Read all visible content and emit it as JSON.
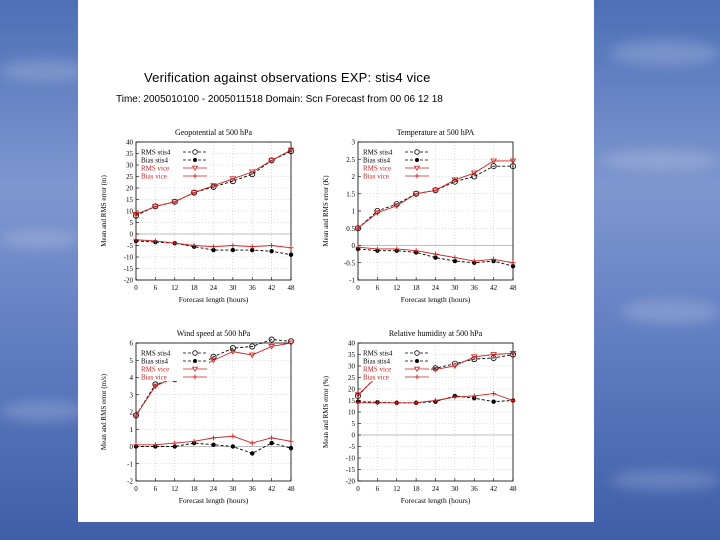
{
  "slide": {
    "title": "Verification against observations EXP:   stis4 vice",
    "subtitle": "Time: 2005010100 - 2005011518   Domain: Scn   Forecast from 00 06 12 18"
  },
  "chart_data": [
    {
      "type": "line",
      "title": "Geopotential at 500 hPa",
      "xlabel": "Forecast length (hours)",
      "ylabel": "Mean and RMS error (m)",
      "x": [
        0,
        6,
        12,
        18,
        24,
        30,
        36,
        42,
        48
      ],
      "xticks": [
        "0",
        "6",
        "12",
        "18",
        "24",
        "30",
        "36",
        "42",
        "48"
      ],
      "ylim": [
        -20,
        40
      ],
      "yticks": [
        -20,
        -15,
        -10,
        -5,
        0,
        5,
        10,
        15,
        20,
        25,
        30,
        35,
        40
      ],
      "grid": true,
      "legend": "top-left",
      "series": [
        {
          "name": "RMS stis4",
          "color": "#000000",
          "marker": "circle",
          "dashed": true,
          "values": [
            8,
            12,
            14,
            18,
            20.5,
            23,
            26,
            32,
            36
          ]
        },
        {
          "name": "Bias stis4",
          "color": "#000000",
          "marker": "dot",
          "dashed": true,
          "values": [
            -3,
            -3.5,
            -4,
            -5.5,
            -7,
            -7,
            -7,
            -7.5,
            -9
          ]
        },
        {
          "name": "RMS vice",
          "color": "#cc2222",
          "marker": "triangle",
          "dashed": false,
          "values": [
            8.5,
            12,
            14,
            18,
            21,
            24,
            27,
            32,
            36.5
          ]
        },
        {
          "name": "Bias vice",
          "color": "#cc2222",
          "marker": "plus",
          "dashed": false,
          "values": [
            -2.5,
            -3,
            -4,
            -5,
            -5.5,
            -5,
            -5.5,
            -5,
            -6
          ]
        }
      ]
    },
    {
      "type": "line",
      "title": "Temperature at 500 hPA",
      "xlabel": "Forecast length (hours)",
      "ylabel": "Mean and RMS error (K)",
      "x": [
        0,
        6,
        12,
        18,
        24,
        30,
        36,
        42,
        48
      ],
      "xticks": [
        "0",
        "6",
        "12",
        "18",
        "24",
        "30",
        "36",
        "42",
        "48"
      ],
      "ylim": [
        -1,
        3
      ],
      "yticks": [
        -1,
        -0.5,
        0,
        0.5,
        1,
        1.5,
        2,
        2.5,
        3
      ],
      "grid": true,
      "legend": "top-left",
      "series": [
        {
          "name": "RMS stis4",
          "color": "#000000",
          "marker": "circle",
          "dashed": true,
          "values": [
            0.5,
            1.0,
            1.2,
            1.5,
            1.6,
            1.85,
            2.0,
            2.3,
            2.3
          ]
        },
        {
          "name": "Bias stis4",
          "color": "#000000",
          "marker": "dot",
          "dashed": true,
          "values": [
            -0.1,
            -0.15,
            -0.15,
            -0.2,
            -0.35,
            -0.45,
            -0.5,
            -0.45,
            -0.6
          ]
        },
        {
          "name": "RMS vice",
          "color": "#cc2222",
          "marker": "triangle",
          "dashed": false,
          "values": [
            0.5,
            0.95,
            1.15,
            1.5,
            1.6,
            1.9,
            2.1,
            2.45,
            2.45
          ]
        },
        {
          "name": "Bias vice",
          "color": "#cc2222",
          "marker": "plus",
          "dashed": false,
          "values": [
            -0.05,
            -0.1,
            -0.1,
            -0.15,
            -0.25,
            -0.35,
            -0.45,
            -0.4,
            -0.5
          ]
        }
      ]
    },
    {
      "type": "line",
      "title": "Wind speed at 500 hPa",
      "xlabel": "Forecast length (hours)",
      "ylabel": "Mean and RMS error (m/s)",
      "x": [
        0,
        6,
        12,
        18,
        24,
        30,
        36,
        42,
        48
      ],
      "xticks": [
        "0",
        "6",
        "12",
        "18",
        "24",
        "30",
        "36",
        "42",
        "48"
      ],
      "ylim": [
        -2,
        6
      ],
      "yticks": [
        -2,
        -1,
        0,
        1,
        2,
        3,
        4,
        5,
        6
      ],
      "grid": true,
      "legend": "top-left",
      "series": [
        {
          "name": "RMS stis4",
          "color": "#000000",
          "marker": "circle",
          "dashed": true,
          "values": [
            1.8,
            3.6,
            3.9,
            4.5,
            5.2,
            5.7,
            5.8,
            6.2,
            6.1
          ]
        },
        {
          "name": "Bias stis4",
          "color": "#000000",
          "marker": "dot",
          "dashed": true,
          "values": [
            0.0,
            0.0,
            0.0,
            0.2,
            0.1,
            0.0,
            -0.4,
            0.2,
            -0.1
          ]
        },
        {
          "name": "RMS vice",
          "color": "#cc2222",
          "marker": "triangle",
          "dashed": false,
          "values": [
            1.8,
            3.5,
            4.0,
            4.4,
            5.0,
            5.5,
            5.3,
            5.8,
            6.0
          ]
        },
        {
          "name": "Bias vice",
          "color": "#cc2222",
          "marker": "plus",
          "dashed": false,
          "values": [
            0.1,
            0.1,
            0.2,
            0.3,
            0.5,
            0.6,
            0.2,
            0.5,
            0.3
          ]
        }
      ]
    },
    {
      "type": "line",
      "title": "Relative humidity at 500 hPa",
      "xlabel": "Forecast length (hours)",
      "ylabel": "Mean and RMS error (%)",
      "x": [
        0,
        6,
        12,
        18,
        24,
        30,
        36,
        42,
        48
      ],
      "xticks": [
        "0",
        "6",
        "12",
        "18",
        "24",
        "30",
        "36",
        "42",
        "48"
      ],
      "ylim": [
        -20,
        40
      ],
      "yticks": [
        -20,
        -15,
        -10,
        -5,
        0,
        5,
        10,
        15,
        20,
        25,
        30,
        35,
        40
      ],
      "grid": true,
      "legend": "top-left",
      "series": [
        {
          "name": "RMS stis4",
          "color": "#000000",
          "marker": "circle",
          "dashed": true,
          "values": [
            17,
            26,
            28,
            28,
            29,
            31,
            33,
            33.5,
            35
          ]
        },
        {
          "name": "Bias stis4",
          "color": "#000000",
          "marker": "dot",
          "dashed": true,
          "values": [
            14.5,
            14.2,
            14,
            14,
            14.5,
            17,
            16,
            14.5,
            15
          ]
        },
        {
          "name": "RMS vice",
          "color": "#cc2222",
          "marker": "triangle",
          "dashed": false,
          "values": [
            17.5,
            25.5,
            27.5,
            28.5,
            28.5,
            30,
            34,
            35,
            35.5
          ]
        },
        {
          "name": "Bias vice",
          "color": "#cc2222",
          "marker": "plus",
          "dashed": false,
          "values": [
            14,
            14,
            14,
            14,
            15,
            16.5,
            17,
            18,
            15
          ]
        }
      ]
    }
  ]
}
